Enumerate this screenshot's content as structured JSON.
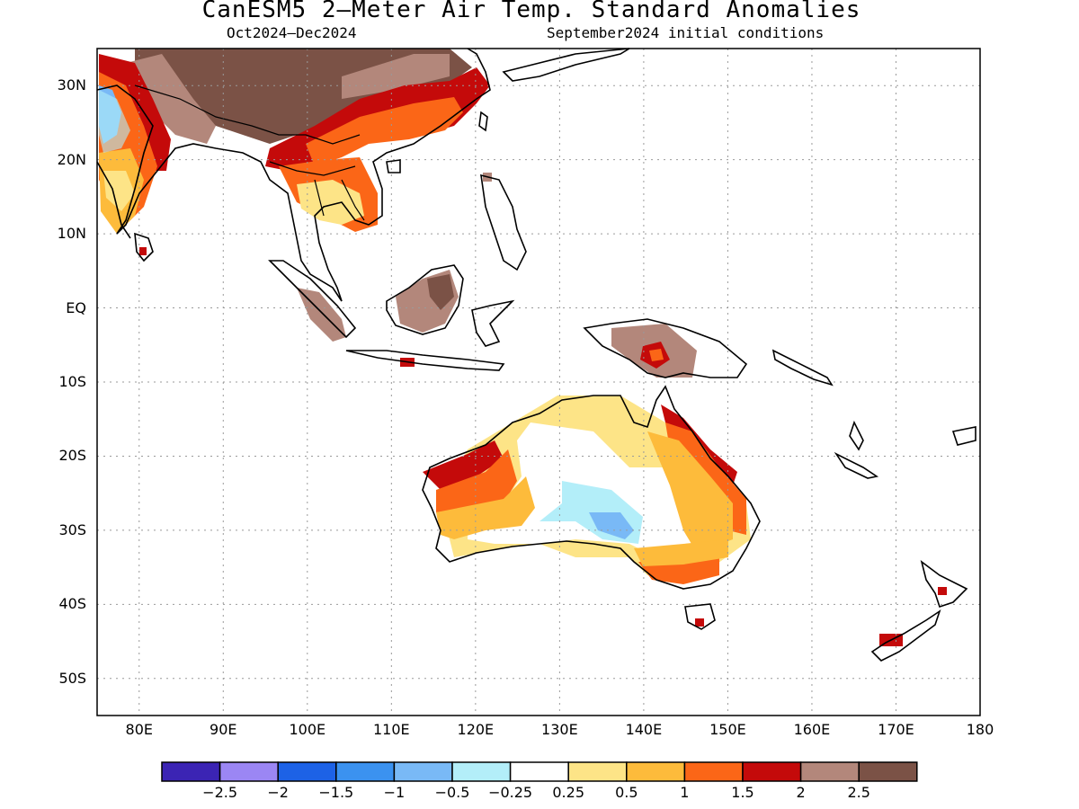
{
  "title": "CanESM5 2–Meter Air Temp. Standard Anomalies",
  "subtitle_left": "Oct2024–Dec2024",
  "subtitle_right": "September2024 initial conditions",
  "lat_labels": [
    "30N",
    "20N",
    "10N",
    "EQ",
    "10S",
    "20S",
    "30S",
    "40S",
    "50S"
  ],
  "lon_labels": [
    "80E",
    "90E",
    "100E",
    "110E",
    "120E",
    "130E",
    "140E",
    "150E",
    "160E",
    "170E",
    "180"
  ],
  "colorbar": {
    "colors": [
      "#3b24b4",
      "#9b86f4",
      "#1d62e6",
      "#3b92f0",
      "#79b9f6",
      "#b3eef9",
      "#ffffff",
      "#fde487",
      "#fdbb3b",
      "#fb6617",
      "#c40a0a",
      "#b3877b",
      "#7b5246"
    ],
    "labels": [
      "−2.5",
      "−2",
      "−1.5",
      "−1",
      "−0.5",
      "−0.25",
      "0.25",
      "0.5",
      "1",
      "1.5",
      "2",
      "2.5"
    ]
  },
  "map_extent": {
    "lon_min": 75,
    "lon_max": 180,
    "lat_min": -55,
    "lat_max": 35
  }
}
